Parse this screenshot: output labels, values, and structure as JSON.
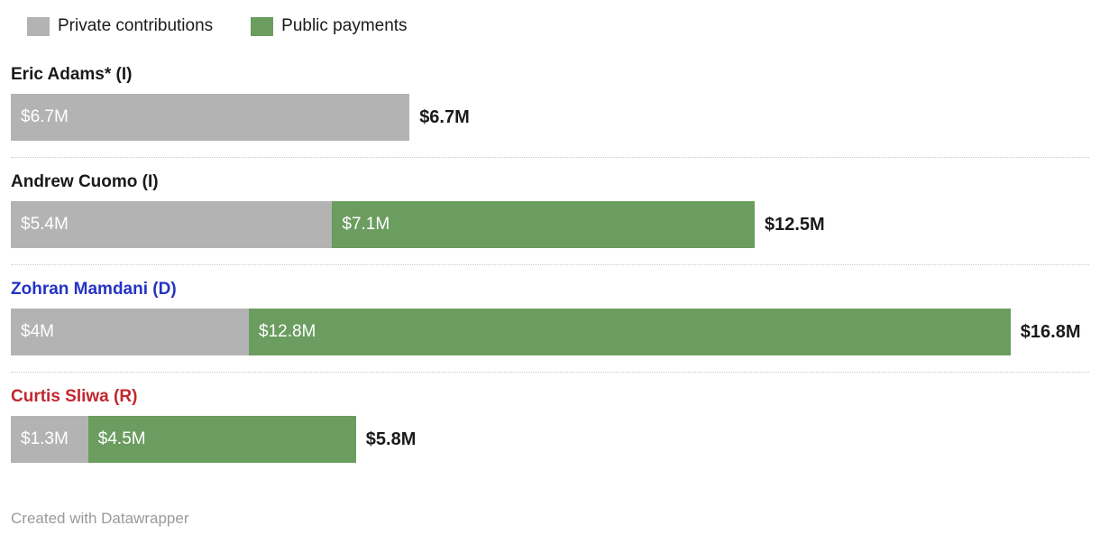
{
  "legend": {
    "items": [
      {
        "key": "private",
        "label": "Private contributions",
        "color": "#b3b3b3"
      },
      {
        "key": "public",
        "label": "Public payments",
        "color": "#6a9d5f"
      }
    ]
  },
  "chart_data": {
    "type": "bar",
    "orientation": "horizontal",
    "stacked": true,
    "unit": "USD millions",
    "xlim": [
      0,
      16.8
    ],
    "grid": false,
    "legend_position": "top",
    "categories": [
      "Eric Adams* (I)",
      "Andrew Cuomo (I)",
      "Zohran Mamdani (D)",
      "Curtis Sliwa (R)"
    ],
    "series": [
      {
        "name": "Private contributions",
        "color": "#b3b3b3",
        "values": [
          6.7,
          5.4,
          4.0,
          1.3
        ]
      },
      {
        "name": "Public payments",
        "color": "#6a9d5f",
        "values": [
          0,
          7.1,
          12.8,
          4.5
        ]
      }
    ],
    "rows": [
      {
        "name": "Eric Adams* (I)",
        "name_color": "#1a1a1a",
        "segments": [
          {
            "series": "Private contributions",
            "value": 6.7,
            "label": "$6.7M",
            "color": "#b3b3b3"
          }
        ],
        "total": 6.7,
        "total_label": "$6.7M"
      },
      {
        "name": "Andrew Cuomo (I)",
        "name_color": "#1a1a1a",
        "segments": [
          {
            "series": "Private contributions",
            "value": 5.4,
            "label": "$5.4M",
            "color": "#b3b3b3"
          },
          {
            "series": "Public payments",
            "value": 7.1,
            "label": "$7.1M",
            "color": "#6a9d5f"
          }
        ],
        "total": 12.5,
        "total_label": "$12.5M"
      },
      {
        "name": "Zohran Mamdani (D)",
        "name_color": "#2533c4",
        "segments": [
          {
            "series": "Private contributions",
            "value": 4.0,
            "label": "$4M",
            "color": "#b3b3b3"
          },
          {
            "series": "Public payments",
            "value": 12.8,
            "label": "$12.8M",
            "color": "#6a9d5f"
          }
        ],
        "total": 16.8,
        "total_label": "$16.8M"
      },
      {
        "name": "Curtis Sliwa (R)",
        "name_color": "#c1272d",
        "segments": [
          {
            "series": "Private contributions",
            "value": 1.3,
            "label": "$1.3M",
            "color": "#b3b3b3"
          },
          {
            "series": "Public payments",
            "value": 4.5,
            "label": "$4.5M",
            "color": "#6a9d5f"
          }
        ],
        "total": 5.8,
        "total_label": "$5.8M"
      }
    ]
  },
  "footer": {
    "credit": "Created with Datawrapper"
  }
}
